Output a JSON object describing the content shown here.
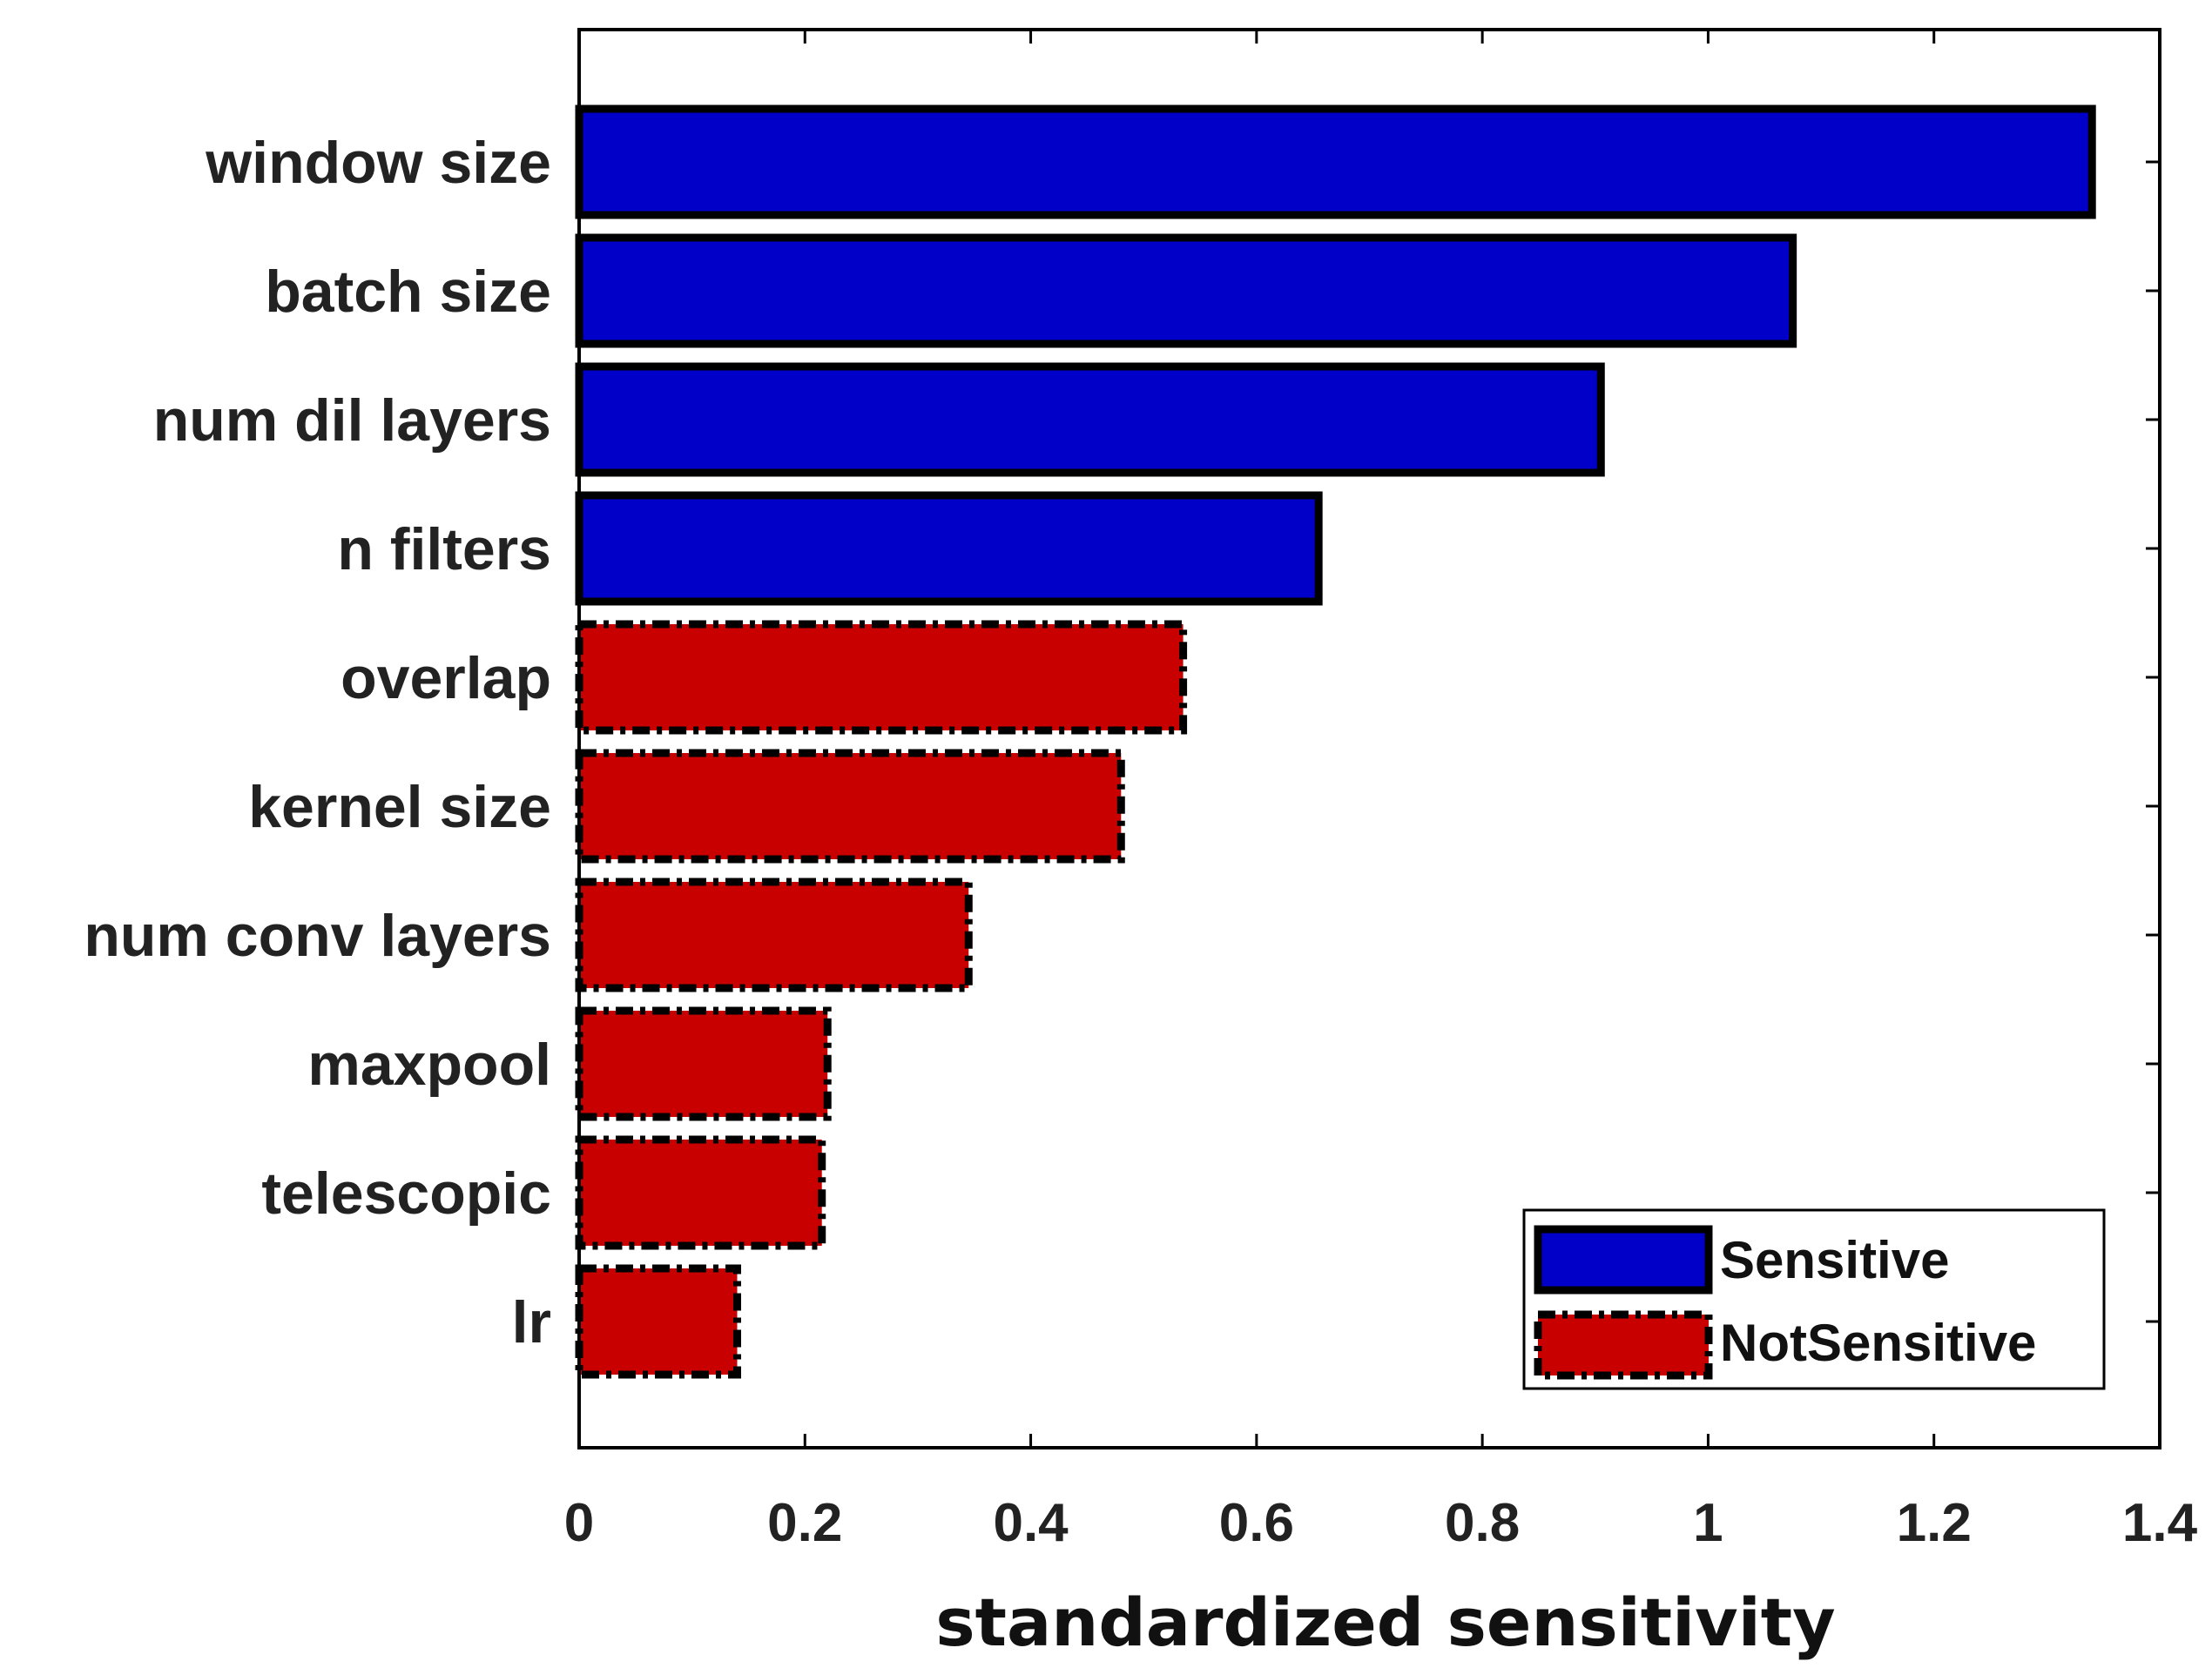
{
  "chart_data": {
    "type": "bar",
    "orientation": "horizontal",
    "xlabel": "standardized sensitivity",
    "xlim": [
      0,
      1.4
    ],
    "xticks": [
      0,
      0.2,
      0.4,
      0.6,
      0.8,
      1,
      1.2,
      1.4
    ],
    "xtick_labels": [
      "0",
      "0.2",
      "0.4",
      "0.6",
      "0.8",
      "1",
      "1.2",
      "1.4"
    ],
    "grid": false,
    "legend_position": "bottom-right",
    "series": [
      {
        "name": "Sensitive",
        "color": "#0000c8",
        "edge": "solid"
      },
      {
        "name": "NotSensitive",
        "color": "#c80000",
        "edge": "dash-dot"
      }
    ],
    "categories": [
      "window size",
      "batch size",
      "num dil layers",
      "n filters",
      "overlap",
      "kernel size",
      "num conv layers",
      "maxpool",
      "telescopic",
      "lr"
    ],
    "values": [
      1.34,
      1.075,
      0.905,
      0.655,
      0.535,
      0.48,
      0.345,
      0.22,
      0.215,
      0.14
    ],
    "groups": [
      "Sensitive",
      "Sensitive",
      "Sensitive",
      "Sensitive",
      "NotSensitive",
      "NotSensitive",
      "NotSensitive",
      "NotSensitive",
      "NotSensitive",
      "NotSensitive"
    ]
  }
}
